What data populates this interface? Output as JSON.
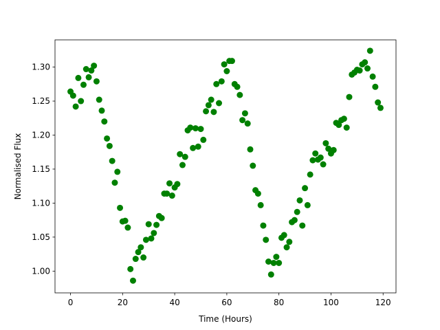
{
  "chart_data": {
    "type": "scatter",
    "x_label": "Time (Hours)",
    "y_label": "Normalised Flux",
    "x": [
      0,
      1,
      2,
      3,
      4,
      5,
      6,
      7,
      8,
      9,
      10,
      11,
      12,
      13,
      14,
      15,
      16,
      17,
      18,
      19,
      20,
      21,
      22,
      23,
      24,
      25,
      26,
      27,
      28,
      29,
      30,
      31,
      32,
      33,
      34,
      35,
      36,
      37,
      38,
      39,
      40,
      41,
      42,
      43,
      44,
      45,
      46,
      47,
      48,
      49,
      50,
      51,
      52,
      53,
      54,
      55,
      56,
      57,
      58,
      59,
      60,
      61,
      62,
      63,
      64,
      65,
      66,
      67,
      68,
      69,
      70,
      71,
      72,
      73,
      74,
      75,
      76,
      77,
      78,
      79,
      80,
      81,
      82,
      83,
      84,
      85,
      86,
      87,
      88,
      89,
      90,
      91,
      92,
      93,
      94,
      95,
      96,
      97,
      98,
      99,
      100,
      101,
      102,
      103,
      104,
      105,
      106,
      107,
      108,
      109,
      110,
      111,
      112,
      113,
      114,
      115,
      116,
      117,
      118,
      119
    ],
    "values": [
      1.264,
      1.258,
      1.242,
      1.284,
      1.25,
      1.274,
      1.297,
      1.285,
      1.295,
      1.302,
      1.279,
      1.252,
      1.236,
      1.22,
      1.195,
      1.184,
      1.162,
      1.13,
      1.146,
      1.093,
      1.073,
      1.074,
      1.064,
      1.003,
      0.986,
      1.018,
      1.028,
      1.035,
      1.02,
      1.046,
      1.069,
      1.048,
      1.056,
      1.068,
      1.081,
      1.078,
      1.114,
      1.114,
      1.129,
      1.111,
      1.123,
      1.128,
      1.172,
      1.156,
      1.168,
      1.207,
      1.211,
      1.181,
      1.21,
      1.183,
      1.209,
      1.193,
      1.235,
      1.244,
      1.252,
      1.234,
      1.275,
      1.247,
      1.279,
      1.304,
      1.294,
      1.309,
      1.309,
      1.275,
      1.271,
      1.259,
      1.222,
      1.232,
      1.217,
      1.179,
      1.155,
      1.119,
      1.114,
      1.097,
      1.067,
      1.046,
      1.014,
      0.995,
      1.012,
      1.021,
      1.012,
      1.049,
      1.053,
      1.035,
      1.043,
      1.072,
      1.075,
      1.087,
      1.104,
      1.067,
      1.122,
      1.097,
      1.142,
      1.163,
      1.173,
      1.164,
      1.167,
      1.157,
      1.188,
      1.18,
      1.173,
      1.178,
      1.218,
      1.215,
      1.222,
      1.224,
      1.211,
      1.256,
      1.289,
      1.292,
      1.296,
      1.295,
      1.304,
      1.307,
      1.298,
      1.324,
      1.286,
      1.271,
      1.248,
      1.24
    ],
    "color": "#008000",
    "xlim": [
      -5.95,
      124.95
    ],
    "xticks": [
      0,
      20,
      40,
      60,
      80,
      100,
      120
    ],
    "ylim": [
      0.968,
      1.34
    ],
    "yticks": [
      {
        "value": 1.0,
        "label": "1.00"
      },
      1.05,
      {
        "value": 1.1,
        "label": "1.10"
      },
      1.15,
      {
        "value": 1.2,
        "label": "1.20"
      },
      1.25,
      {
        "value": 1.3,
        "label": "1.30"
      }
    ]
  }
}
